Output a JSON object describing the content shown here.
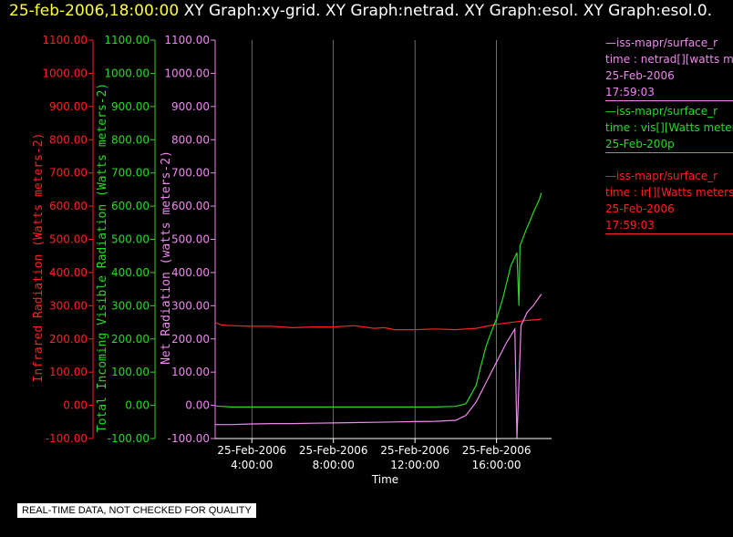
{
  "header": {
    "timestamp": "25-feb-2006,18:00:00",
    "graphs": "XY Graph:xy-grid.  XY Graph:netrad.  XY Graph:esol.  XY Graph:esol.0."
  },
  "colors": {
    "ir": "#ff2020",
    "vis": "#22dd22",
    "net": "#ee88ee",
    "grid": "#ffffff",
    "text": "#ffffff"
  },
  "legend": {
    "net": {
      "line1": "—iss-mapr/surface_r",
      "line2": "time : netrad[][watts me",
      "line3": "25-Feb-2006",
      "line4": "17:59:03"
    },
    "vis": {
      "line1": "—iss-mapr/surface_r",
      "line2": "time : vis[][Watts meter",
      "line3": "25-Feb-200p"
    },
    "ir": {
      "line1": "—iss-mapr/surface_r",
      "line2": "time : ir[][Watts meters",
      "line3": "25-Feb-2006",
      "line4": "17:59:03"
    }
  },
  "footnote": "REAL-TIME DATA, NOT CHECKED FOR QUALITY",
  "chart_data": {
    "type": "line",
    "xlabel": "Time",
    "x_range_hours": [
      2.2,
      18.7
    ],
    "x_ticks": [
      {
        "hour": 4,
        "date": "25-Feb-2006",
        "time": "4:00:00"
      },
      {
        "hour": 8,
        "date": "25-Feb-2006",
        "time": "8:00:00"
      },
      {
        "hour": 12,
        "date": "25-Feb-2006",
        "time": "12:00:00"
      },
      {
        "hour": 16,
        "date": "25-Feb-2006",
        "time": "16:00:00"
      }
    ],
    "ylim": [
      -100,
      1100
    ],
    "y_ticks": [
      "-100.00",
      "0.00",
      "100.00",
      "200.00",
      "300.00",
      "400.00",
      "500.00",
      "600.00",
      "700.00",
      "800.00",
      "900.00",
      "1000.00",
      "1100.00"
    ],
    "axes": [
      {
        "key": "ir",
        "label": "Infrared Radiation (Watts meters-2)"
      },
      {
        "key": "vis",
        "label": "Total Incoming Visible Radiation (Watts meters-2)"
      },
      {
        "key": "net",
        "label": "Net Radiation (watts meters-2)"
      }
    ],
    "grid": true,
    "series": [
      {
        "key": "ir",
        "points": [
          [
            2.2,
            250
          ],
          [
            2.5,
            242
          ],
          [
            3,
            240
          ],
          [
            4,
            238
          ],
          [
            5,
            238
          ],
          [
            6,
            234
          ],
          [
            7,
            236
          ],
          [
            8,
            236
          ],
          [
            9,
            240
          ],
          [
            9.5,
            236
          ],
          [
            10,
            232
          ],
          [
            10.5,
            234
          ],
          [
            11,
            228
          ],
          [
            12,
            228
          ],
          [
            13,
            230
          ],
          [
            14,
            228
          ],
          [
            14.5,
            230
          ],
          [
            15,
            232
          ],
          [
            15.5,
            238
          ],
          [
            16,
            244
          ],
          [
            16.5,
            248
          ],
          [
            17,
            252
          ],
          [
            17.5,
            256
          ],
          [
            18,
            258
          ],
          [
            18.2,
            260
          ]
        ]
      },
      {
        "key": "vis",
        "points": [
          [
            2.2,
            -2
          ],
          [
            3,
            -5
          ],
          [
            4,
            -5
          ],
          [
            5,
            -5
          ],
          [
            6,
            -5
          ],
          [
            7,
            -5
          ],
          [
            8,
            -5
          ],
          [
            9,
            -5
          ],
          [
            10,
            -5
          ],
          [
            11,
            -5
          ],
          [
            12,
            -5
          ],
          [
            13,
            -5
          ],
          [
            14,
            -3
          ],
          [
            14.5,
            5
          ],
          [
            15,
            60
          ],
          [
            15.2,
            110
          ],
          [
            15.5,
            180
          ],
          [
            15.8,
            230
          ],
          [
            16,
            260
          ],
          [
            16.3,
            320
          ],
          [
            16.7,
            420
          ],
          [
            17,
            460
          ],
          [
            17.1,
            300
          ],
          [
            17.15,
            480
          ],
          [
            17.4,
            520
          ],
          [
            17.8,
            580
          ],
          [
            18.1,
            620
          ],
          [
            18.2,
            640
          ]
        ]
      },
      {
        "key": "net",
        "points": [
          [
            2.2,
            -58
          ],
          [
            3,
            -58
          ],
          [
            4,
            -56
          ],
          [
            5,
            -55
          ],
          [
            6,
            -55
          ],
          [
            7,
            -54
          ],
          [
            8,
            -53
          ],
          [
            9,
            -52
          ],
          [
            10,
            -51
          ],
          [
            11,
            -50
          ],
          [
            12,
            -49
          ],
          [
            13,
            -48
          ],
          [
            14,
            -45
          ],
          [
            14.5,
            -30
          ],
          [
            15,
            10
          ],
          [
            15.5,
            70
          ],
          [
            16,
            130
          ],
          [
            16.5,
            190
          ],
          [
            16.9,
            230
          ],
          [
            17,
            -100
          ],
          [
            17.2,
            240
          ],
          [
            17.5,
            280
          ],
          [
            17.8,
            300
          ],
          [
            18.2,
            335
          ]
        ]
      }
    ]
  }
}
